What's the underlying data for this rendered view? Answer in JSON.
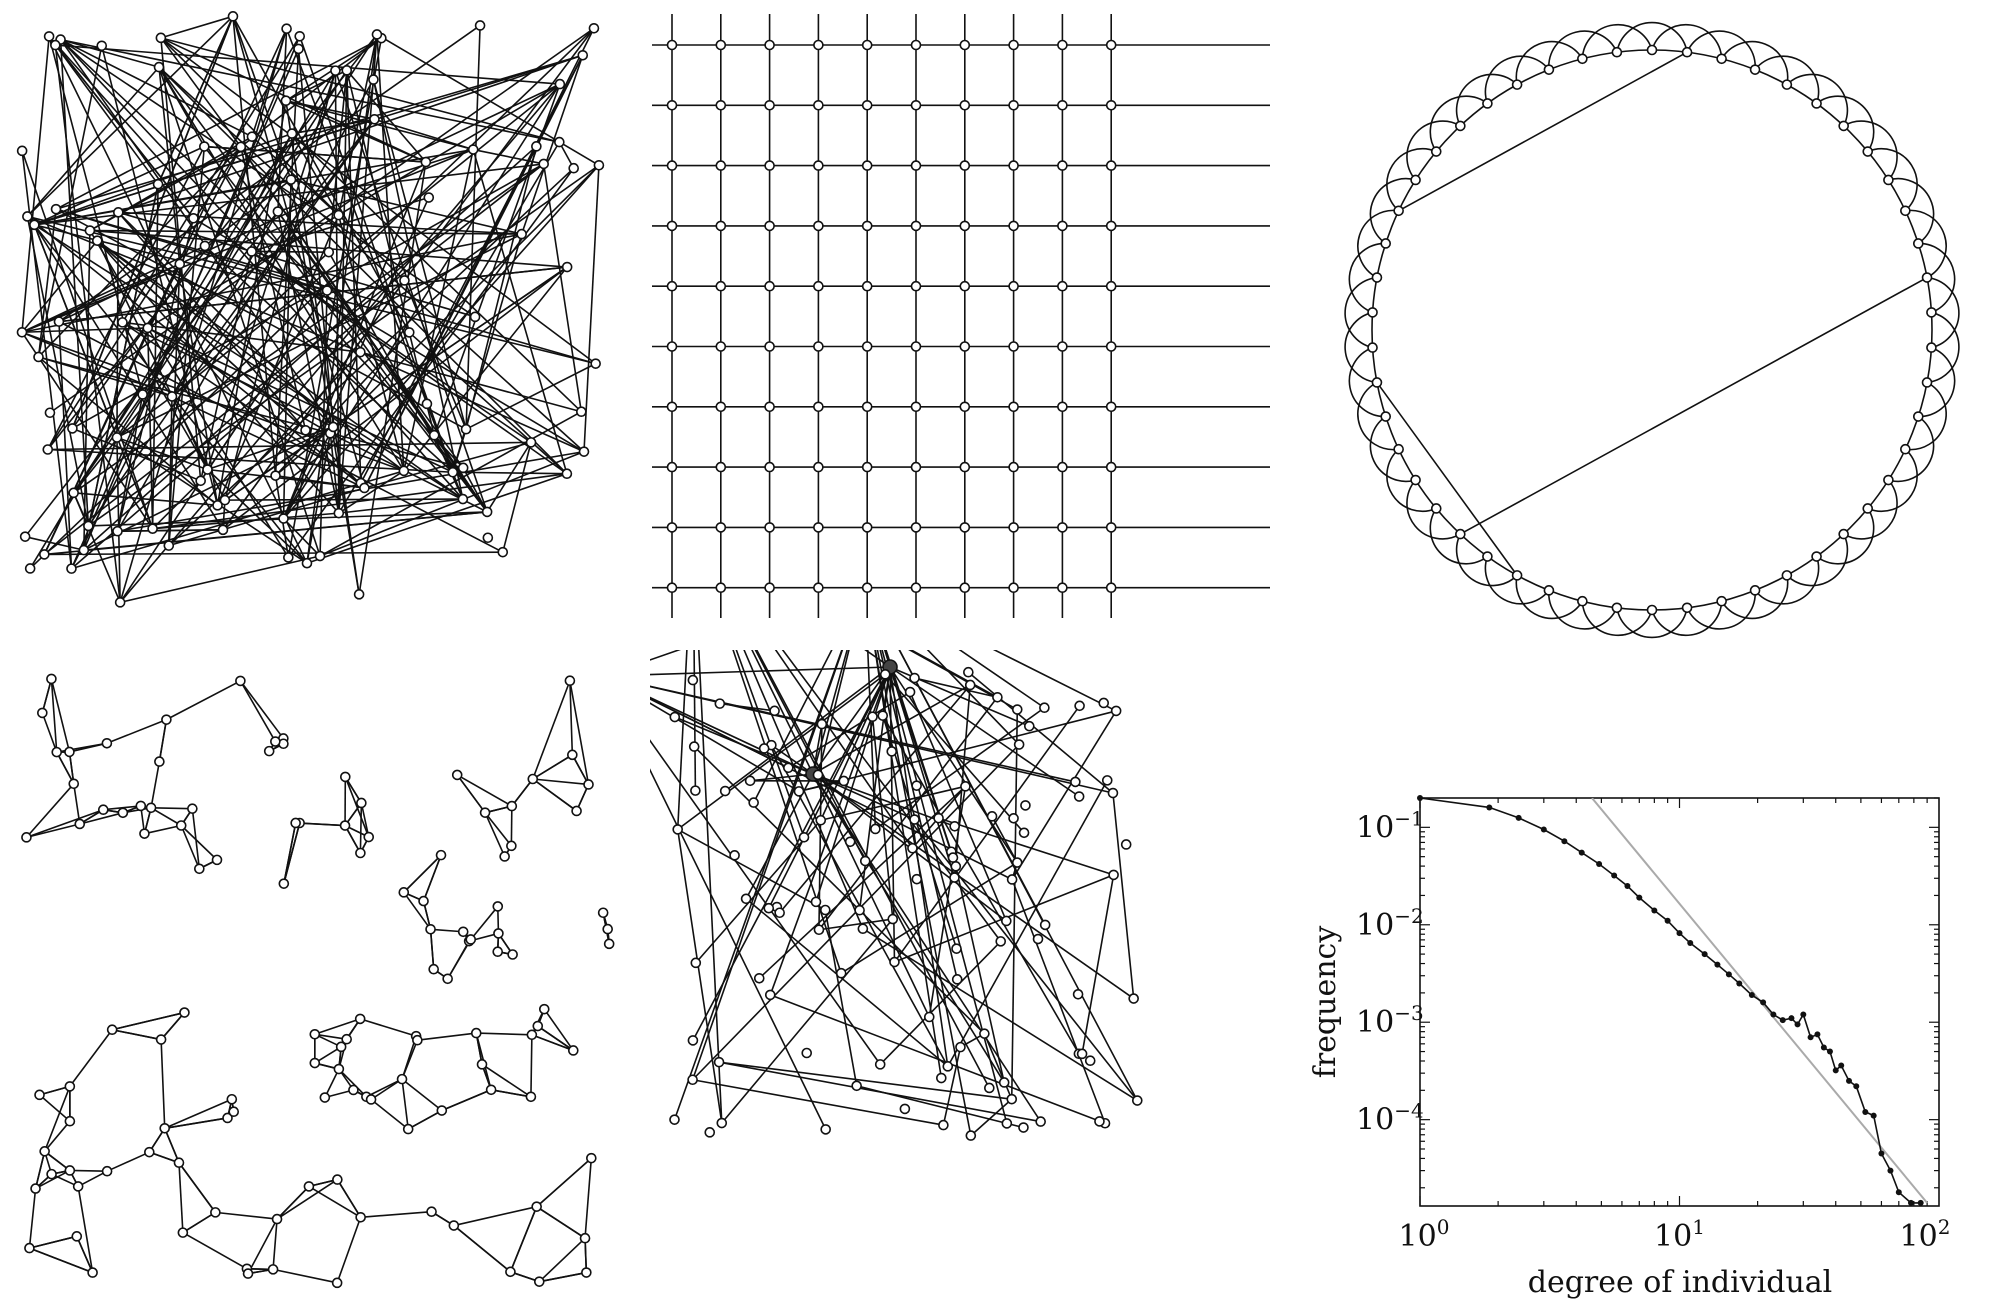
{
  "panels": {
    "random_network": {},
    "lattice": {},
    "small_world_ring": {},
    "spatial_network": {},
    "scale_free": {},
    "degree_plot": {}
  },
  "chart_data": {
    "type": "scatter",
    "title": "",
    "xlabel": "degree of individual",
    "ylabel": "frequency",
    "xscale": "log",
    "yscale": "log",
    "xlim": [
      1,
      100
    ],
    "ylim": [
      1.3e-05,
      0.2
    ],
    "x_ticks": [
      {
        "base": "10",
        "exp": "0",
        "value": 1
      },
      {
        "base": "10",
        "exp": "1",
        "value": 10
      },
      {
        "base": "10",
        "exp": "2",
        "value": 100
      }
    ],
    "y_ticks": [
      {
        "base": "10",
        "exp": "−1",
        "value": 0.1
      },
      {
        "base": "10",
        "exp": "−2",
        "value": 0.01
      },
      {
        "base": "10",
        "exp": "−3",
        "value": 0.001
      },
      {
        "base": "10",
        "exp": "−4",
        "value": 0.0001
      }
    ],
    "series": [
      {
        "style": "black line with dots",
        "color": "#111111",
        "x": [
          1,
          1.85,
          2.4,
          3.0,
          3.6,
          4.2,
          4.9,
          5.6,
          6.3,
          7.0,
          8.0,
          9.0,
          10.0,
          11.0,
          12.5,
          14.0,
          15.5,
          17.0,
          19.0,
          21.0,
          23.0,
          25.0,
          27.0,
          28.5,
          30.0,
          32.0,
          34.0,
          36.0,
          38.0,
          40.0,
          42.0,
          45.0,
          48.0,
          52.0,
          56.0,
          60.0,
          65.0,
          70.0,
          78.0,
          85.0
        ],
        "y": [
          0.2,
          0.16,
          0.125,
          0.095,
          0.072,
          0.055,
          0.042,
          0.032,
          0.025,
          0.019,
          0.014,
          0.011,
          0.0082,
          0.0065,
          0.005,
          0.0039,
          0.0031,
          0.0025,
          0.0019,
          0.0016,
          0.0012,
          0.00105,
          0.0011,
          0.00095,
          0.0012,
          0.0007,
          0.00075,
          0.00055,
          0.0005,
          0.00032,
          0.00036,
          0.00025,
          0.00022,
          0.00012,
          0.00011,
          4.5e-05,
          3e-05,
          1.8e-05,
          1.4e-05,
          1.4e-05
        ]
      },
      {
        "style": "gray power-law fit",
        "color": "#aaaaaa",
        "x": [
          4.6,
          90.0
        ],
        "y": [
          0.2,
          1.4e-05
        ]
      }
    ]
  }
}
